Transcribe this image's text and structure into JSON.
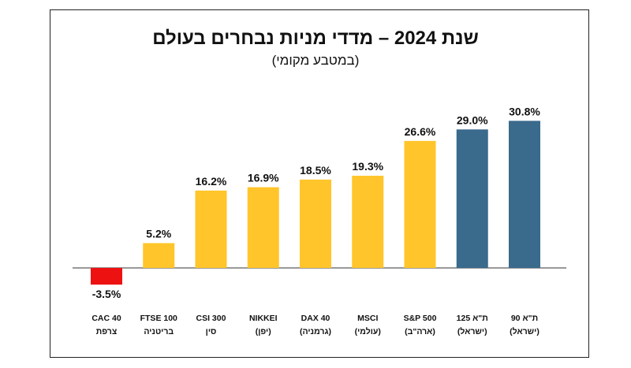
{
  "chart_data": {
    "type": "bar",
    "title": "שנת 2024 – מדדי מניות נבחרים בעולם",
    "subtitle": "(במטבע מקומי)",
    "xlabel": "",
    "ylabel": "",
    "ylim": [
      -4,
      32
    ],
    "grid": false,
    "legend": "none",
    "value_suffix": "%",
    "categories": [
      {
        "line1": "CAC 40",
        "line2": "צרפת"
      },
      {
        "line1": "FTSE 100",
        "line2": "בריטניה"
      },
      {
        "line1": "CSI 300",
        "line2": "סין"
      },
      {
        "line1": "NIKKEI",
        "line2": "(יפן)"
      },
      {
        "line1": "DAX 40",
        "line2": "(גרמניה)"
      },
      {
        "line1": "MSCI",
        "line2": "(עולמי)"
      },
      {
        "line1": "S&P 500",
        "line2": "(ארה\"ב)"
      },
      {
        "line1": "ת\"א 125",
        "line2": "(ישראל)"
      },
      {
        "line1": "ת\"א 90",
        "line2": "(ישראל)"
      }
    ],
    "values": [
      -3.5,
      5.2,
      16.2,
      16.9,
      18.5,
      19.3,
      26.6,
      29.0,
      30.8
    ],
    "value_labels": [
      "-3.5%",
      "5.2%",
      "16.2%",
      "16.9%",
      "18.5%",
      "19.3%",
      "26.6%",
      "29.0%",
      "30.8%"
    ],
    "colors": [
      "#ee1111",
      "#ffc52a",
      "#ffc52a",
      "#ffc52a",
      "#ffc52a",
      "#ffc52a",
      "#ffc52a",
      "#3a6a8c",
      "#3a6a8c"
    ]
  }
}
